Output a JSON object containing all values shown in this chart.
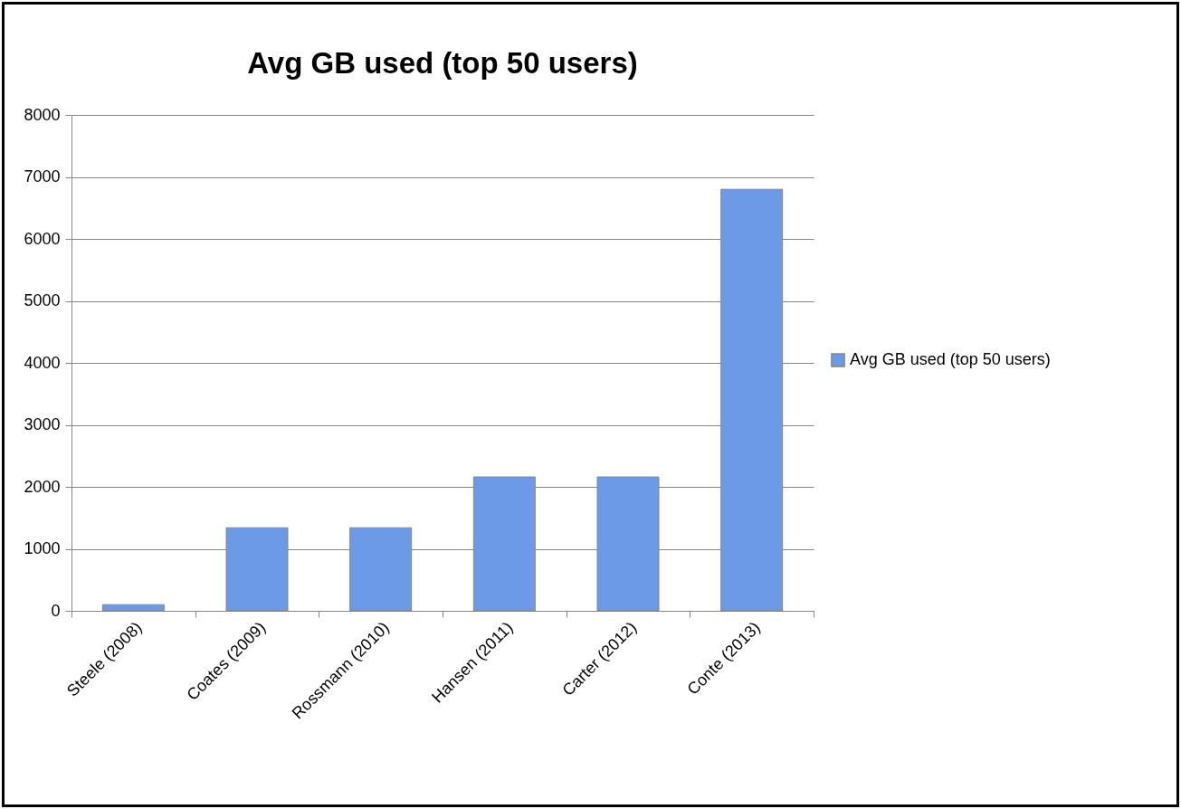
{
  "chart_data": {
    "type": "bar",
    "title": "Avg GB used (top 50 users)",
    "categories": [
      "Steele (2008)",
      "Coates (2009)",
      "Rossmann (2010)",
      "Hansen (2011)",
      "Carter (2012)",
      "Conte (2013)"
    ],
    "series": [
      {
        "name": "Avg GB used (top 50 users)",
        "color": "#6d9ae6",
        "values": [
          100,
          1340,
          1340,
          2160,
          2160,
          6800
        ]
      }
    ],
    "ylim": [
      0,
      8000
    ],
    "yticks": [
      0,
      1000,
      2000,
      3000,
      4000,
      5000,
      6000,
      7000,
      8000
    ],
    "grid": "y",
    "legend": "right"
  }
}
